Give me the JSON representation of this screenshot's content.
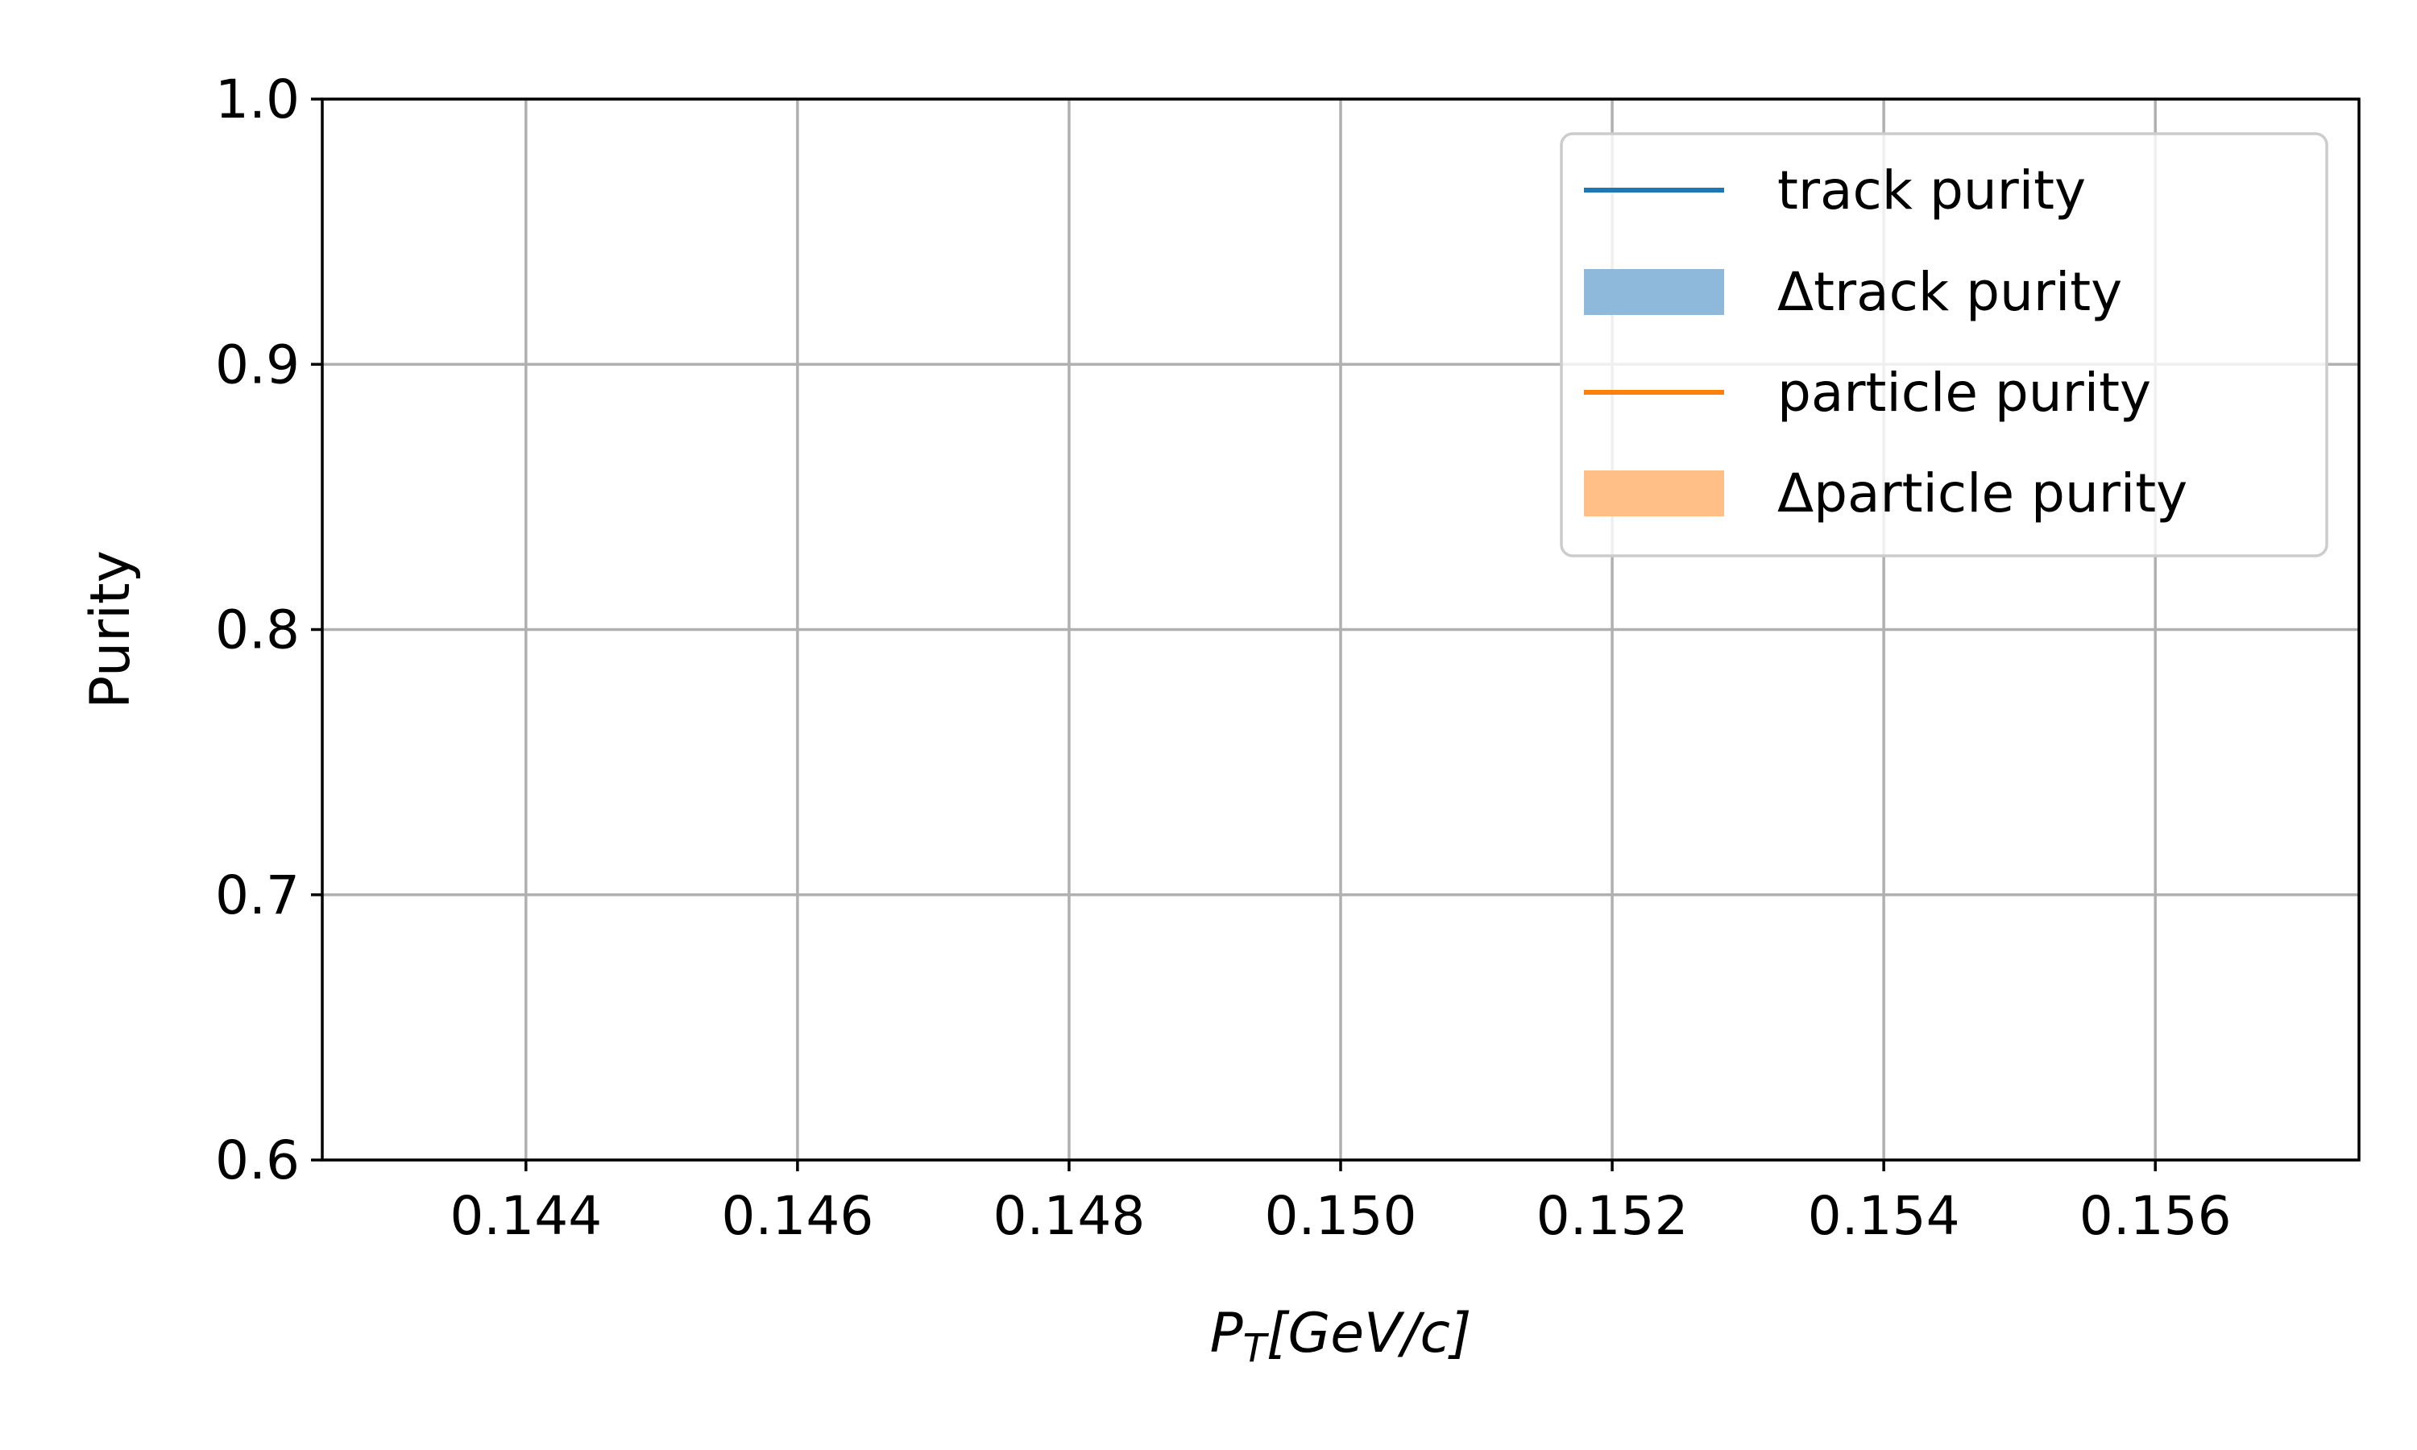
{
  "chart_data": {
    "type": "line",
    "xlabel": "P_T[GeV/c]",
    "xlabel_parts": {
      "main": "P",
      "sub": "T",
      "rest": "[GeV/c]"
    },
    "ylabel": "Purity",
    "xlim": [
      0.1425,
      0.1575
    ],
    "ylim": [
      0.6,
      1.0
    ],
    "x_ticks": [
      0.144,
      0.146,
      0.148,
      0.15,
      0.152,
      0.154,
      0.156
    ],
    "x_tick_labels": [
      "0.144",
      "0.146",
      "0.148",
      "0.150",
      "0.152",
      "0.154",
      "0.156"
    ],
    "y_ticks": [
      0.6,
      0.7,
      0.8,
      0.9,
      1.0
    ],
    "y_tick_labels": [
      "0.6",
      "0.7",
      "0.8",
      "0.9",
      "1.0"
    ],
    "grid": true,
    "legend_position": "top-right",
    "series": [
      {
        "name": "track purity",
        "kind": "line",
        "color": "#1f77b4",
        "x": [],
        "y": []
      },
      {
        "name": "Δtrack purity",
        "kind": "band",
        "color": "#8fb9da",
        "x": [],
        "y_low": [],
        "y_high": []
      },
      {
        "name": "particle purity",
        "kind": "line",
        "color": "#ff7f0e",
        "x": [],
        "y": []
      },
      {
        "name": "Δparticle purity",
        "kind": "band",
        "color": "#ffbf86",
        "x": [],
        "y_low": [],
        "y_high": []
      }
    ]
  }
}
